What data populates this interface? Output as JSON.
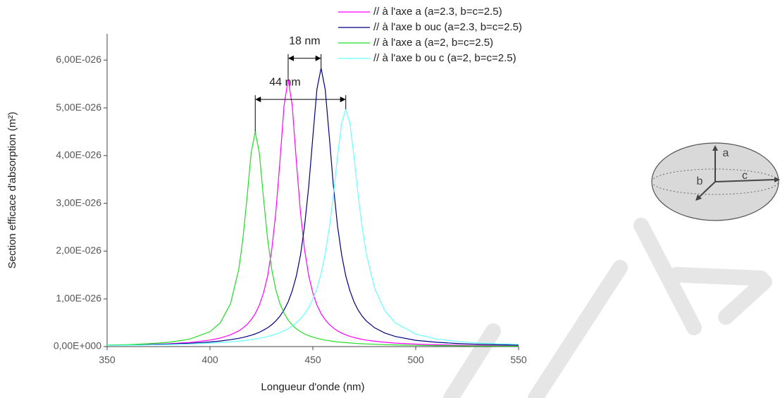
{
  "chart_data": {
    "type": "line",
    "xlabel": "Longueur d'onde (nm)",
    "ylabel": "Section efficace d'absorption (m²)",
    "x": [
      350,
      360,
      370,
      380,
      390,
      400,
      405,
      410,
      414,
      416,
      418,
      420,
      422,
      424,
      426,
      428,
      430,
      432,
      434,
      436,
      438,
      440,
      442,
      444,
      446,
      448,
      450,
      452,
      454,
      456,
      458,
      460,
      462,
      464,
      466,
      468,
      470,
      472,
      474,
      476,
      480,
      485,
      490,
      500,
      510,
      520,
      530,
      540,
      550
    ],
    "series": [
      {
        "name": "// à l'axe a (a=2.3, b=c=2.5)",
        "color": "#ff00ff",
        "values": [
          2.6e-28,
          3.3e-28,
          4.3e-28,
          5.9e-28,
          8.6e-28,
          1.36e-27,
          1.79e-27,
          2.46e-27,
          3.29e-27,
          3.88e-27,
          4.63e-27,
          5.6e-27,
          6.89e-27,
          8.68e-27,
          1.12e-26,
          1.48e-26,
          2.02e-26,
          2.8e-26,
          3.88e-26,
          5.04e-26,
          5.6e-26,
          5.04e-26,
          3.88e-26,
          2.8e-26,
          2.02e-26,
          1.48e-26,
          1.12e-26,
          8.68e-27,
          6.89e-27,
          5.6e-27,
          4.63e-27,
          3.88e-27,
          3.29e-27,
          2.83e-27,
          2.46e-27,
          2.16e-27,
          1.9e-27,
          1.69e-27,
          1.51e-27,
          1.36e-27,
          1.12e-27,
          9e-28,
          7.3e-28,
          5.2e-28,
          3.9e-28,
          3e-28,
          2.4e-28,
          1.9e-28,
          1.6e-28
        ]
      },
      {
        "name": "// à l'axe b ouc (a=2.3, b=c=2.5)",
        "color": "#000080",
        "values": [
          2.6e-28,
          3.2e-28,
          4e-28,
          5.2e-28,
          6.9e-28,
          9.6e-28,
          1.17e-27,
          1.44e-27,
          1.73e-27,
          1.91e-27,
          2.13e-27,
          2.37e-27,
          2.66e-27,
          3.01e-27,
          3.43e-27,
          3.94e-27,
          4.57e-27,
          5.36e-27,
          6.36e-27,
          7.66e-27,
          9.37e-27,
          1.17e-26,
          1.48e-26,
          1.92e-26,
          2.53e-26,
          3.36e-26,
          4.39e-26,
          5.39e-26,
          5.83e-26,
          5.39e-26,
          4.39e-26,
          3.36e-26,
          2.53e-26,
          1.92e-26,
          1.48e-26,
          1.17e-26,
          9.37e-27,
          7.66e-27,
          6.36e-27,
          5.36e-27,
          3.94e-27,
          2.83e-27,
          2.13e-27,
          1.32e-27,
          9e-28,
          6.5e-28,
          4.9e-28,
          3.8e-28,
          3.1e-28
        ]
      },
      {
        "name": "// à l'axe a (a=2, b=c=2.5)",
        "color": "#22dd22",
        "values": [
          3.1e-28,
          4.2e-28,
          5.9e-28,
          9e-28,
          1.53e-27,
          3.12e-27,
          4.98e-27,
          9e-27,
          1.62e-26,
          2.25e-26,
          3.12e-26,
          4.05e-26,
          4.5e-26,
          4.05e-26,
          3.12e-26,
          2.25e-26,
          1.62e-26,
          1.19e-26,
          9e-27,
          6.99e-27,
          5.55e-27,
          4.5e-27,
          3.71e-27,
          3.12e-27,
          2.65e-27,
          2.27e-27,
          1.97e-27,
          1.73e-27,
          1.53e-27,
          1.36e-27,
          1.22e-27,
          1.09e-27,
          9.9e-28,
          9e-28,
          8.2e-28,
          7.5e-28,
          6.9e-28,
          6.4e-28,
          5.9e-28,
          5.5e-28,
          4.8e-28,
          4e-28,
          3.5e-28,
          2.6e-28,
          2.1e-28,
          1.7e-28,
          1.4e-28,
          1.2e-28,
          9.9e-29
        ]
      },
      {
        "name": "// à l'axe b ou c (a=2, b=c=2.5)",
        "color": "#66ffff",
        "values": [
          2.4e-28,
          2.8e-28,
          3.4e-28,
          4.3e-28,
          5.4e-28,
          7.2e-28,
          8.4e-28,
          9.9e-28,
          1.15e-27,
          1.24e-27,
          1.34e-27,
          1.46e-27,
          1.59e-27,
          1.74e-27,
          1.91e-27,
          2.11e-27,
          2.34e-27,
          2.61e-27,
          2.92e-27,
          3.3e-27,
          3.75e-27,
          4.3e-27,
          4.97e-27,
          5.81e-27,
          6.86e-27,
          8.2e-27,
          9.94e-27,
          1.22e-26,
          1.53e-26,
          1.94e-26,
          2.49e-26,
          3.18e-26,
          3.98e-26,
          4.68e-26,
          4.97e-26,
          4.68e-26,
          3.98e-26,
          3.18e-26,
          2.49e-26,
          1.94e-26,
          1.22e-26,
          7.49e-27,
          4.97e-27,
          2.61e-27,
          1.59e-27,
          1.07e-27,
          7.7e-28,
          5.8e-28,
          4.5e-28
        ]
      }
    ],
    "xlim": [
      350,
      550
    ],
    "xticks": [
      350,
      400,
      450,
      500,
      550
    ],
    "ylim": [
      0,
      6.55e-26
    ],
    "yticks": [
      {
        "value": 0,
        "label": "0,00E+000"
      },
      {
        "value": 1e-26,
        "label": "1,00E-026"
      },
      {
        "value": 2e-26,
        "label": "2,00E-026"
      },
      {
        "value": 3e-26,
        "label": "3,00E-026"
      },
      {
        "value": 4e-26,
        "label": "4,00E-026"
      },
      {
        "value": 5e-26,
        "label": "5,00E-026"
      },
      {
        "value": 6e-26,
        "label": "6,00E-026"
      }
    ],
    "annotations": [
      "18 nm",
      "44 nm"
    ],
    "legend": "upper right"
  },
  "inset_labels": [
    "a",
    "b",
    "c"
  ]
}
